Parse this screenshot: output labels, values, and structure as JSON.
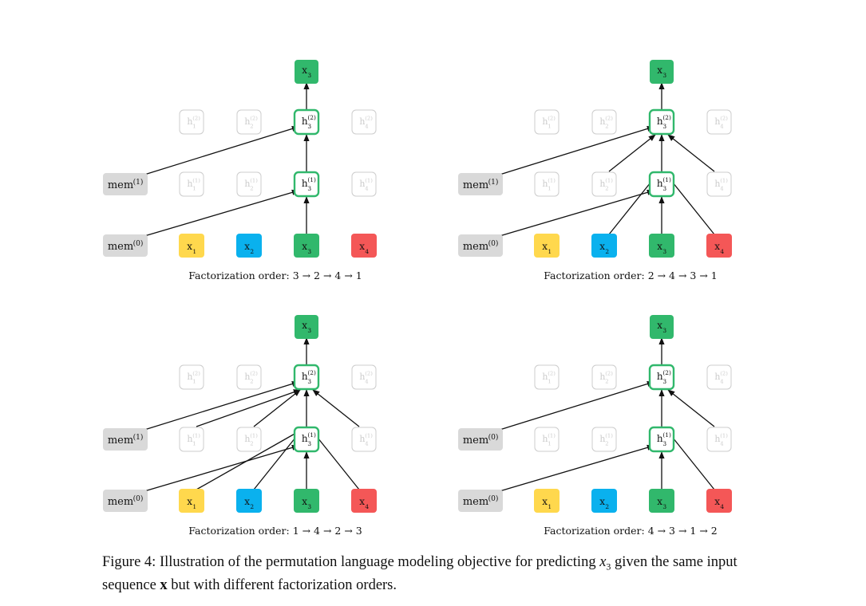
{
  "caption": {
    "label": "Figure 4:",
    "part1": "Illustration of the permutation language modeling objective for predicting",
    "math_x": "x",
    "math_sub": "3",
    "part2": "given the same input sequence",
    "bold_x": "x",
    "part3": "but with different factorization orders."
  },
  "colors": {
    "yellow": "#ffd84d",
    "blue": "#0ab1ee",
    "green": "#31b86c",
    "red": "#f45757",
    "mem_gray": "#d9d9d9",
    "faded": "#cccccc"
  },
  "panels": [
    {
      "caption_prefix": "Factorization order:",
      "order": [
        "3",
        "2",
        "4",
        "1"
      ],
      "mem_top_label": "mem",
      "mem_top_sup": "(1)",
      "mem_bottom_label": "mem",
      "mem_bottom_sup": "(0)",
      "input_colors": [
        "yellow",
        "blue",
        "green",
        "red"
      ],
      "layer1_sources": [
        "mem"
      ],
      "layer2_sources": [
        "mem"
      ]
    },
    {
      "caption_prefix": "Factorization order:",
      "order": [
        "2",
        "4",
        "3",
        "1"
      ],
      "mem_top_label": "mem",
      "mem_top_sup": "(1)",
      "mem_bottom_label": "mem",
      "mem_bottom_sup": "(0)",
      "input_colors": [
        "yellow",
        "blue",
        "green",
        "red"
      ],
      "layer1_sources": [
        "mem",
        "x2",
        "x4"
      ],
      "layer2_sources": [
        "mem",
        "h2",
        "h4"
      ]
    },
    {
      "caption_prefix": "Factorization order:",
      "order": [
        "1",
        "4",
        "2",
        "3"
      ],
      "mem_top_label": "mem",
      "mem_top_sup": "(1)",
      "mem_bottom_label": "mem",
      "mem_bottom_sup": "(0)",
      "input_colors": [
        "yellow",
        "blue",
        "green",
        "red"
      ],
      "layer1_sources": [
        "mem",
        "x1",
        "x2",
        "x4"
      ],
      "layer2_sources": [
        "mem",
        "h1",
        "h2",
        "h4"
      ]
    },
    {
      "caption_prefix": "Factorization order:",
      "order": [
        "4",
        "3",
        "1",
        "2"
      ],
      "mem_top_label": "mem",
      "mem_top_sup": "(0)",
      "mem_bottom_label": "mem",
      "mem_bottom_sup": "(0)",
      "input_colors": [
        "yellow",
        "blue",
        "green",
        "red"
      ],
      "layer1_sources": [
        "mem",
        "x4"
      ],
      "layer2_sources": [
        "mem",
        "h4"
      ]
    }
  ],
  "node_labels": {
    "x": "x",
    "h": "h",
    "layer1_sup": "(1)",
    "layer2_sup": "(2)"
  },
  "arrow_glyph": "→"
}
